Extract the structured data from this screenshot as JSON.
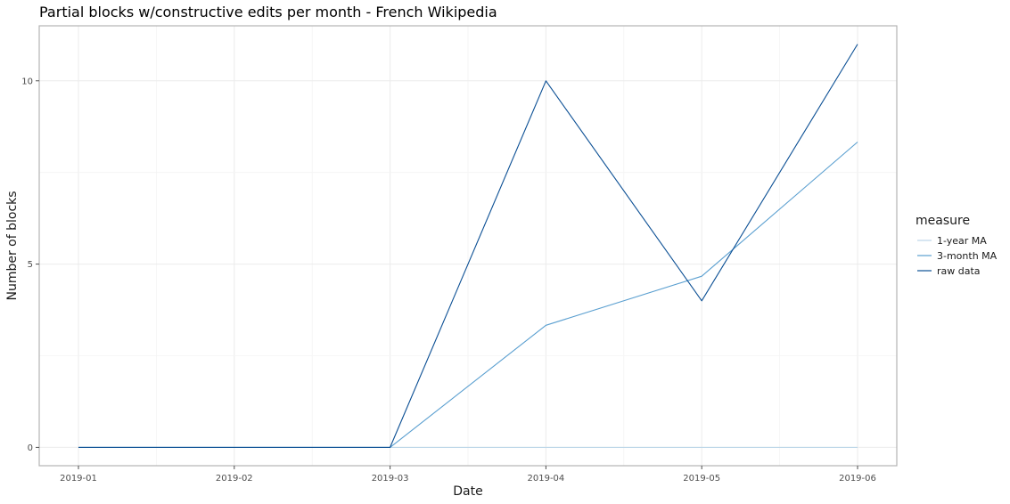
{
  "chart_data": {
    "type": "line",
    "title": "Partial blocks w/constructive edits per month - French Wikipedia",
    "xlabel": "Date",
    "ylabel": "Number of blocks",
    "x": [
      "2019-01",
      "2019-02",
      "2019-03",
      "2019-04",
      "2019-05",
      "2019-06"
    ],
    "y_ticks": [
      0,
      5,
      10
    ],
    "ylim": [
      -0.5,
      11.5
    ],
    "grid": true,
    "legend": {
      "title": "measure",
      "position": "right"
    },
    "series": [
      {
        "name": "1-year MA",
        "color": "#bcd6e8",
        "values": [
          0,
          0,
          0,
          0,
          0,
          0
        ]
      },
      {
        "name": "3-month MA",
        "color": "#5a9fd0",
        "values": [
          0,
          0,
          0,
          3.33,
          4.67,
          8.33
        ]
      },
      {
        "name": "raw data",
        "color": "#0b4f94",
        "values": [
          0,
          0,
          0,
          10,
          4,
          11
        ]
      }
    ]
  }
}
